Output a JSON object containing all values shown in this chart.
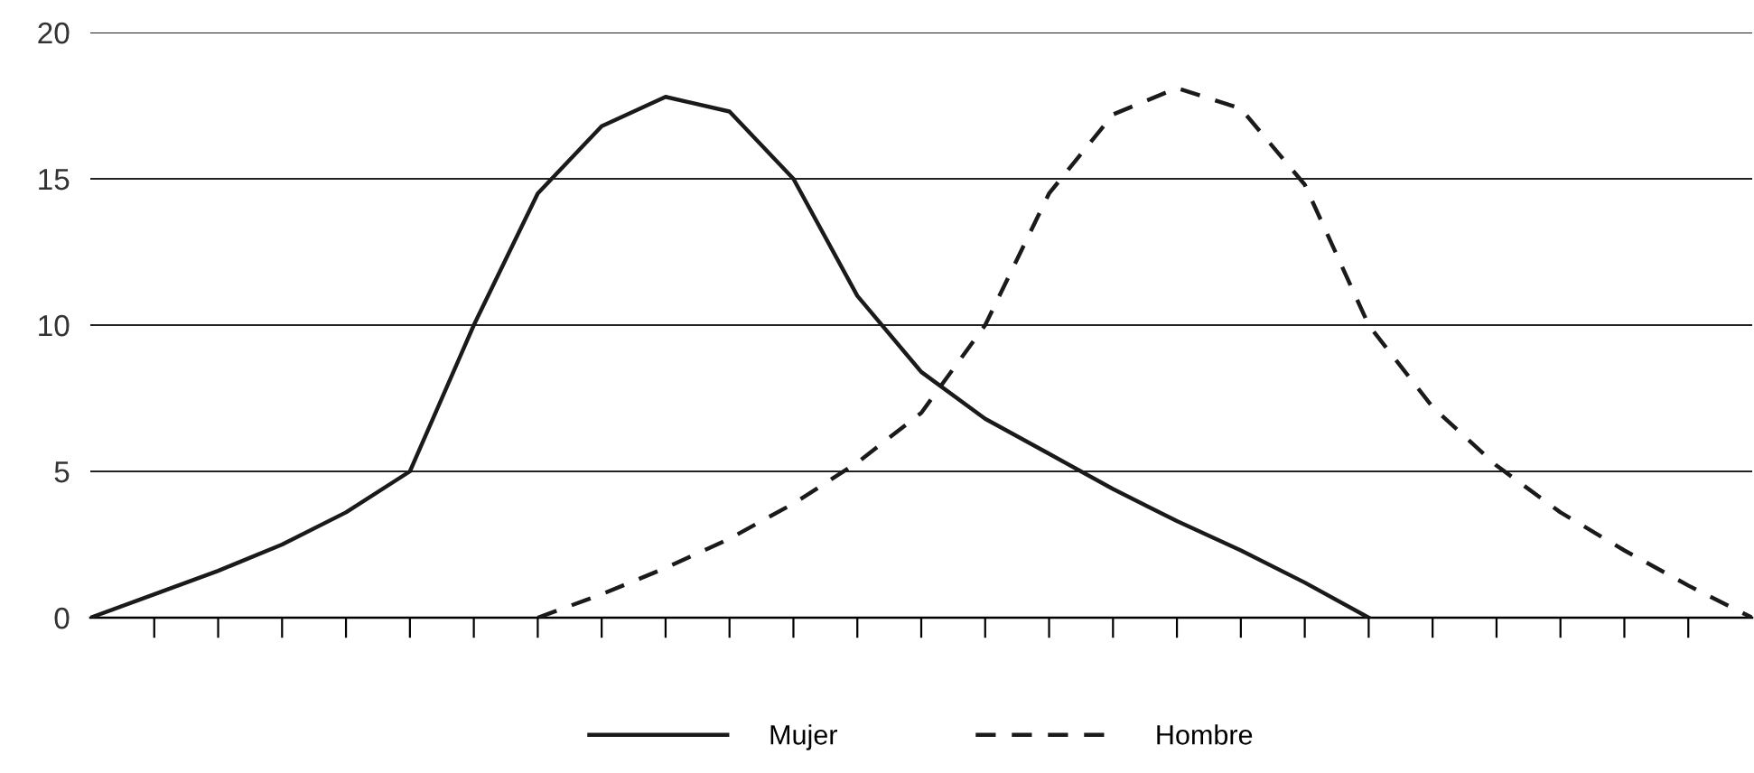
{
  "chart_data": {
    "type": "line",
    "categories": [
      null,
      null,
      null,
      null,
      null,
      null,
      null,
      null,
      null,
      null,
      null,
      null,
      null,
      null,
      null,
      null,
      null,
      null,
      null,
      null,
      null,
      null,
      null,
      null,
      null,
      null,
      null
    ],
    "series": [
      {
        "name": "Mujer",
        "color": "#1a1a1a",
        "line_style": "solid",
        "values": [
          0,
          0.8,
          1.6,
          2.5,
          3.6,
          5.0,
          10,
          14.5,
          16.8,
          17.8,
          17.3,
          15,
          11,
          8.4,
          6.8,
          5.6,
          4.4,
          3.3,
          2.3,
          1.2,
          0,
          null,
          null,
          null,
          null,
          null,
          null
        ]
      },
      {
        "name": "Hombre",
        "color": "#1a1a1a",
        "line_style": "dashed",
        "values": [
          null,
          null,
          null,
          null,
          null,
          null,
          null,
          0,
          0.8,
          1.7,
          2.7,
          3.9,
          5.3,
          7,
          10,
          14.5,
          17.2,
          18.1,
          17.4,
          14.8,
          10,
          7.2,
          5.2,
          3.6,
          2.3,
          1.1,
          0
        ]
      }
    ],
    "ylim": [
      0,
      20
    ],
    "yticks": [
      0,
      5,
      10,
      15,
      20
    ],
    "grid": "y",
    "legend": "bottom",
    "tick_labels": "y",
    "marker": "none"
  }
}
